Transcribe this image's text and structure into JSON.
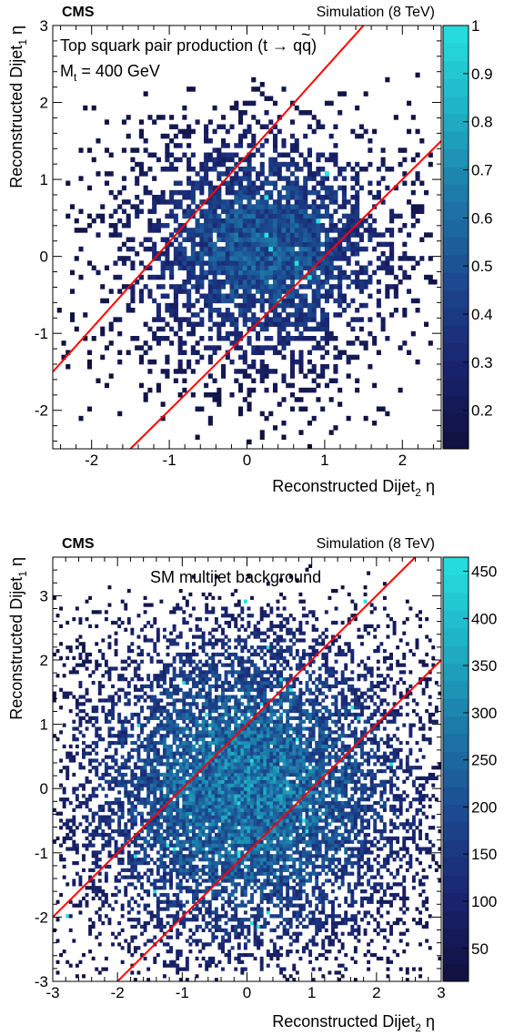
{
  "chart_data": [
    {
      "type": "heatmap",
      "experiment_label": "CMS",
      "status_label": "Simulation (8 TeV)",
      "annotation_line1_prefix": "Top squark pair production (",
      "annotation_line1_stop": "t",
      "annotation_line1_tilde": "~",
      "annotation_line1_suffix": " → qq)",
      "annotation_line2_prefix": "M",
      "annotation_line2_sub": "t",
      "annotation_line2_suffix": " = 400 GeV",
      "xlabel_prefix": "Reconstructed Dijet",
      "xlabel_sub": "2",
      "xlabel_suffix": " η",
      "ylabel_prefix": "Reconstructed Dijet",
      "ylabel_sub": "1",
      "ylabel_suffix": " η",
      "xlim": [
        -2.5,
        2.5
      ],
      "ylim": [
        -2.5,
        3.0
      ],
      "xticks": [
        -2,
        -1,
        0,
        1,
        2
      ],
      "yticks": [
        -2,
        -1,
        0,
        1,
        2,
        3
      ],
      "zlim": [
        0.12,
        1.0
      ],
      "zticks": [
        0.2,
        0.3,
        0.4,
        0.5,
        0.6,
        0.7,
        0.8,
        0.9,
        1
      ],
      "distribution": {
        "center": [
          0.2,
          0.1
        ],
        "sigma": [
          0.85,
          0.75
        ],
        "extent": [
          2.3,
          2.2
        ],
        "peak": 0.55
      },
      "lines": [
        {
          "color": "#ff0000",
          "from": [
            -2.5,
            -1.5
          ],
          "to": [
            1.5,
            3.0
          ]
        },
        {
          "color": "#ff0000",
          "from": [
            -1.5,
            -2.5
          ],
          "to": [
            2.5,
            1.5
          ]
        }
      ],
      "colormap": [
        "#10103c",
        "#1a2470",
        "#1c4a90",
        "#1d7aa8",
        "#1fb2c6",
        "#26e0e0"
      ]
    },
    {
      "type": "heatmap",
      "experiment_label": "CMS",
      "status_label": "Simulation (8 TeV)",
      "annotation_line1": "SM multijet background",
      "xlabel_prefix": "Reconstructed Dijet",
      "xlabel_sub": "2",
      "xlabel_suffix": " η",
      "ylabel_prefix": "Reconstructed Dijet",
      "ylabel_sub": "1",
      "ylabel_suffix": " η",
      "xlim": [
        -3,
        3
      ],
      "ylim": [
        -3,
        3.6
      ],
      "xticks": [
        -3,
        -2,
        -1,
        0,
        1,
        2,
        3
      ],
      "yticks": [
        -3,
        -2,
        -1,
        0,
        1,
        2,
        3
      ],
      "zlim": [
        15,
        465
      ],
      "zticks": [
        50,
        100,
        150,
        200,
        250,
        300,
        350,
        400,
        450
      ],
      "distribution": {
        "center": [
          0.0,
          0.0
        ],
        "sigma": [
          1.3,
          1.3
        ],
        "extent": [
          2.8,
          2.8
        ],
        "peak": 300
      },
      "lines": [
        {
          "color": "#ff0000",
          "from": [
            -3.0,
            -2.0
          ],
          "to": [
            2.6,
            3.6
          ]
        },
        {
          "color": "#ff0000",
          "from": [
            -2.0,
            -3.0
          ],
          "to": [
            3.0,
            2.0
          ]
        }
      ],
      "colormap": [
        "#10103c",
        "#1a2470",
        "#1c4a90",
        "#1d7aa8",
        "#1fb2c6",
        "#26e0e0"
      ]
    }
  ]
}
